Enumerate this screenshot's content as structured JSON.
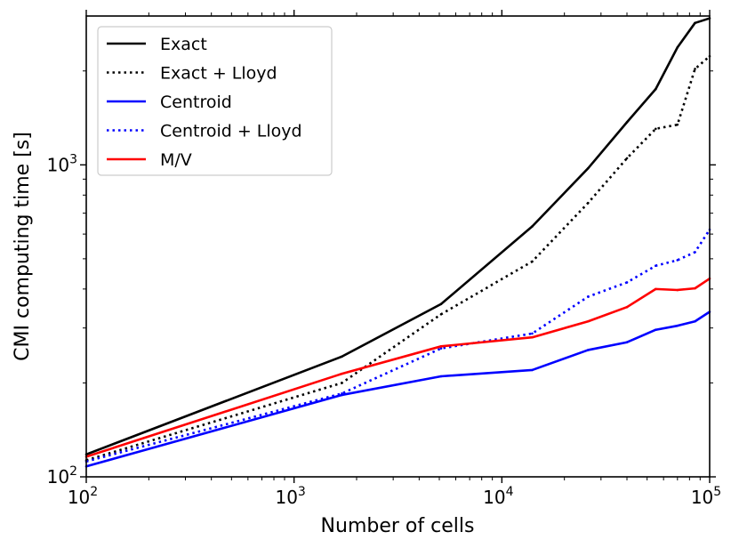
{
  "chart_data": {
    "type": "line",
    "xscale": "log",
    "yscale": "log",
    "xlabel": "Number of cells",
    "ylabel": "CMI computing time [s]",
    "xlim": [
      100,
      100000
    ],
    "ylim": [
      100,
      3000
    ],
    "x_major_ticks": [
      {
        "value": 100,
        "base": "10",
        "exp": "2"
      },
      {
        "value": 1000,
        "base": "10",
        "exp": "3"
      },
      {
        "value": 10000,
        "base": "10",
        "exp": "4"
      },
      {
        "value": 100000,
        "base": "10",
        "exp": "5"
      }
    ],
    "y_major_ticks": [
      {
        "value": 100,
        "base": "10",
        "exp": "2"
      },
      {
        "value": 1000,
        "base": "10",
        "exp": "3"
      }
    ],
    "legend_position": "top-left",
    "series": [
      {
        "name": "Exact",
        "color": "#000000",
        "dash": "solid",
        "x": [
          100,
          1700,
          5100,
          14000,
          26000,
          40000,
          55000,
          70000,
          85000,
          100000
        ],
        "y": [
          118,
          243,
          358,
          635,
          975,
          1370,
          1750,
          2380,
          2850,
          2950
        ]
      },
      {
        "name": "Exact + Lloyd",
        "color": "#000000",
        "dash": "dotted",
        "x": [
          100,
          1700,
          5100,
          14000,
          26000,
          40000,
          55000,
          70000,
          85000,
          100000
        ],
        "y": [
          113,
          200,
          332,
          490,
          755,
          1050,
          1305,
          1345,
          2030,
          2230
        ]
      },
      {
        "name": "Centroid",
        "color": "#0000ff",
        "dash": "solid",
        "x": [
          100,
          1700,
          5100,
          14000,
          26000,
          40000,
          55000,
          70000,
          85000,
          100000
        ],
        "y": [
          108,
          183,
          210,
          220,
          255,
          270,
          296,
          305,
          315,
          338
        ]
      },
      {
        "name": "Centroid + Lloyd",
        "color": "#0000ff",
        "dash": "dotted",
        "x": [
          100,
          1700,
          5100,
          14000,
          26000,
          40000,
          55000,
          70000,
          85000,
          100000
        ],
        "y": [
          112,
          185,
          258,
          288,
          378,
          420,
          475,
          495,
          525,
          620
        ]
      },
      {
        "name": "M/V",
        "color": "#ff0000",
        "dash": "solid",
        "x": [
          100,
          1700,
          5100,
          14000,
          26000,
          40000,
          55000,
          70000,
          85000,
          100000
        ],
        "y": [
          116,
          214,
          262,
          280,
          315,
          350,
          400,
          397,
          402,
          432
        ]
      }
    ]
  }
}
